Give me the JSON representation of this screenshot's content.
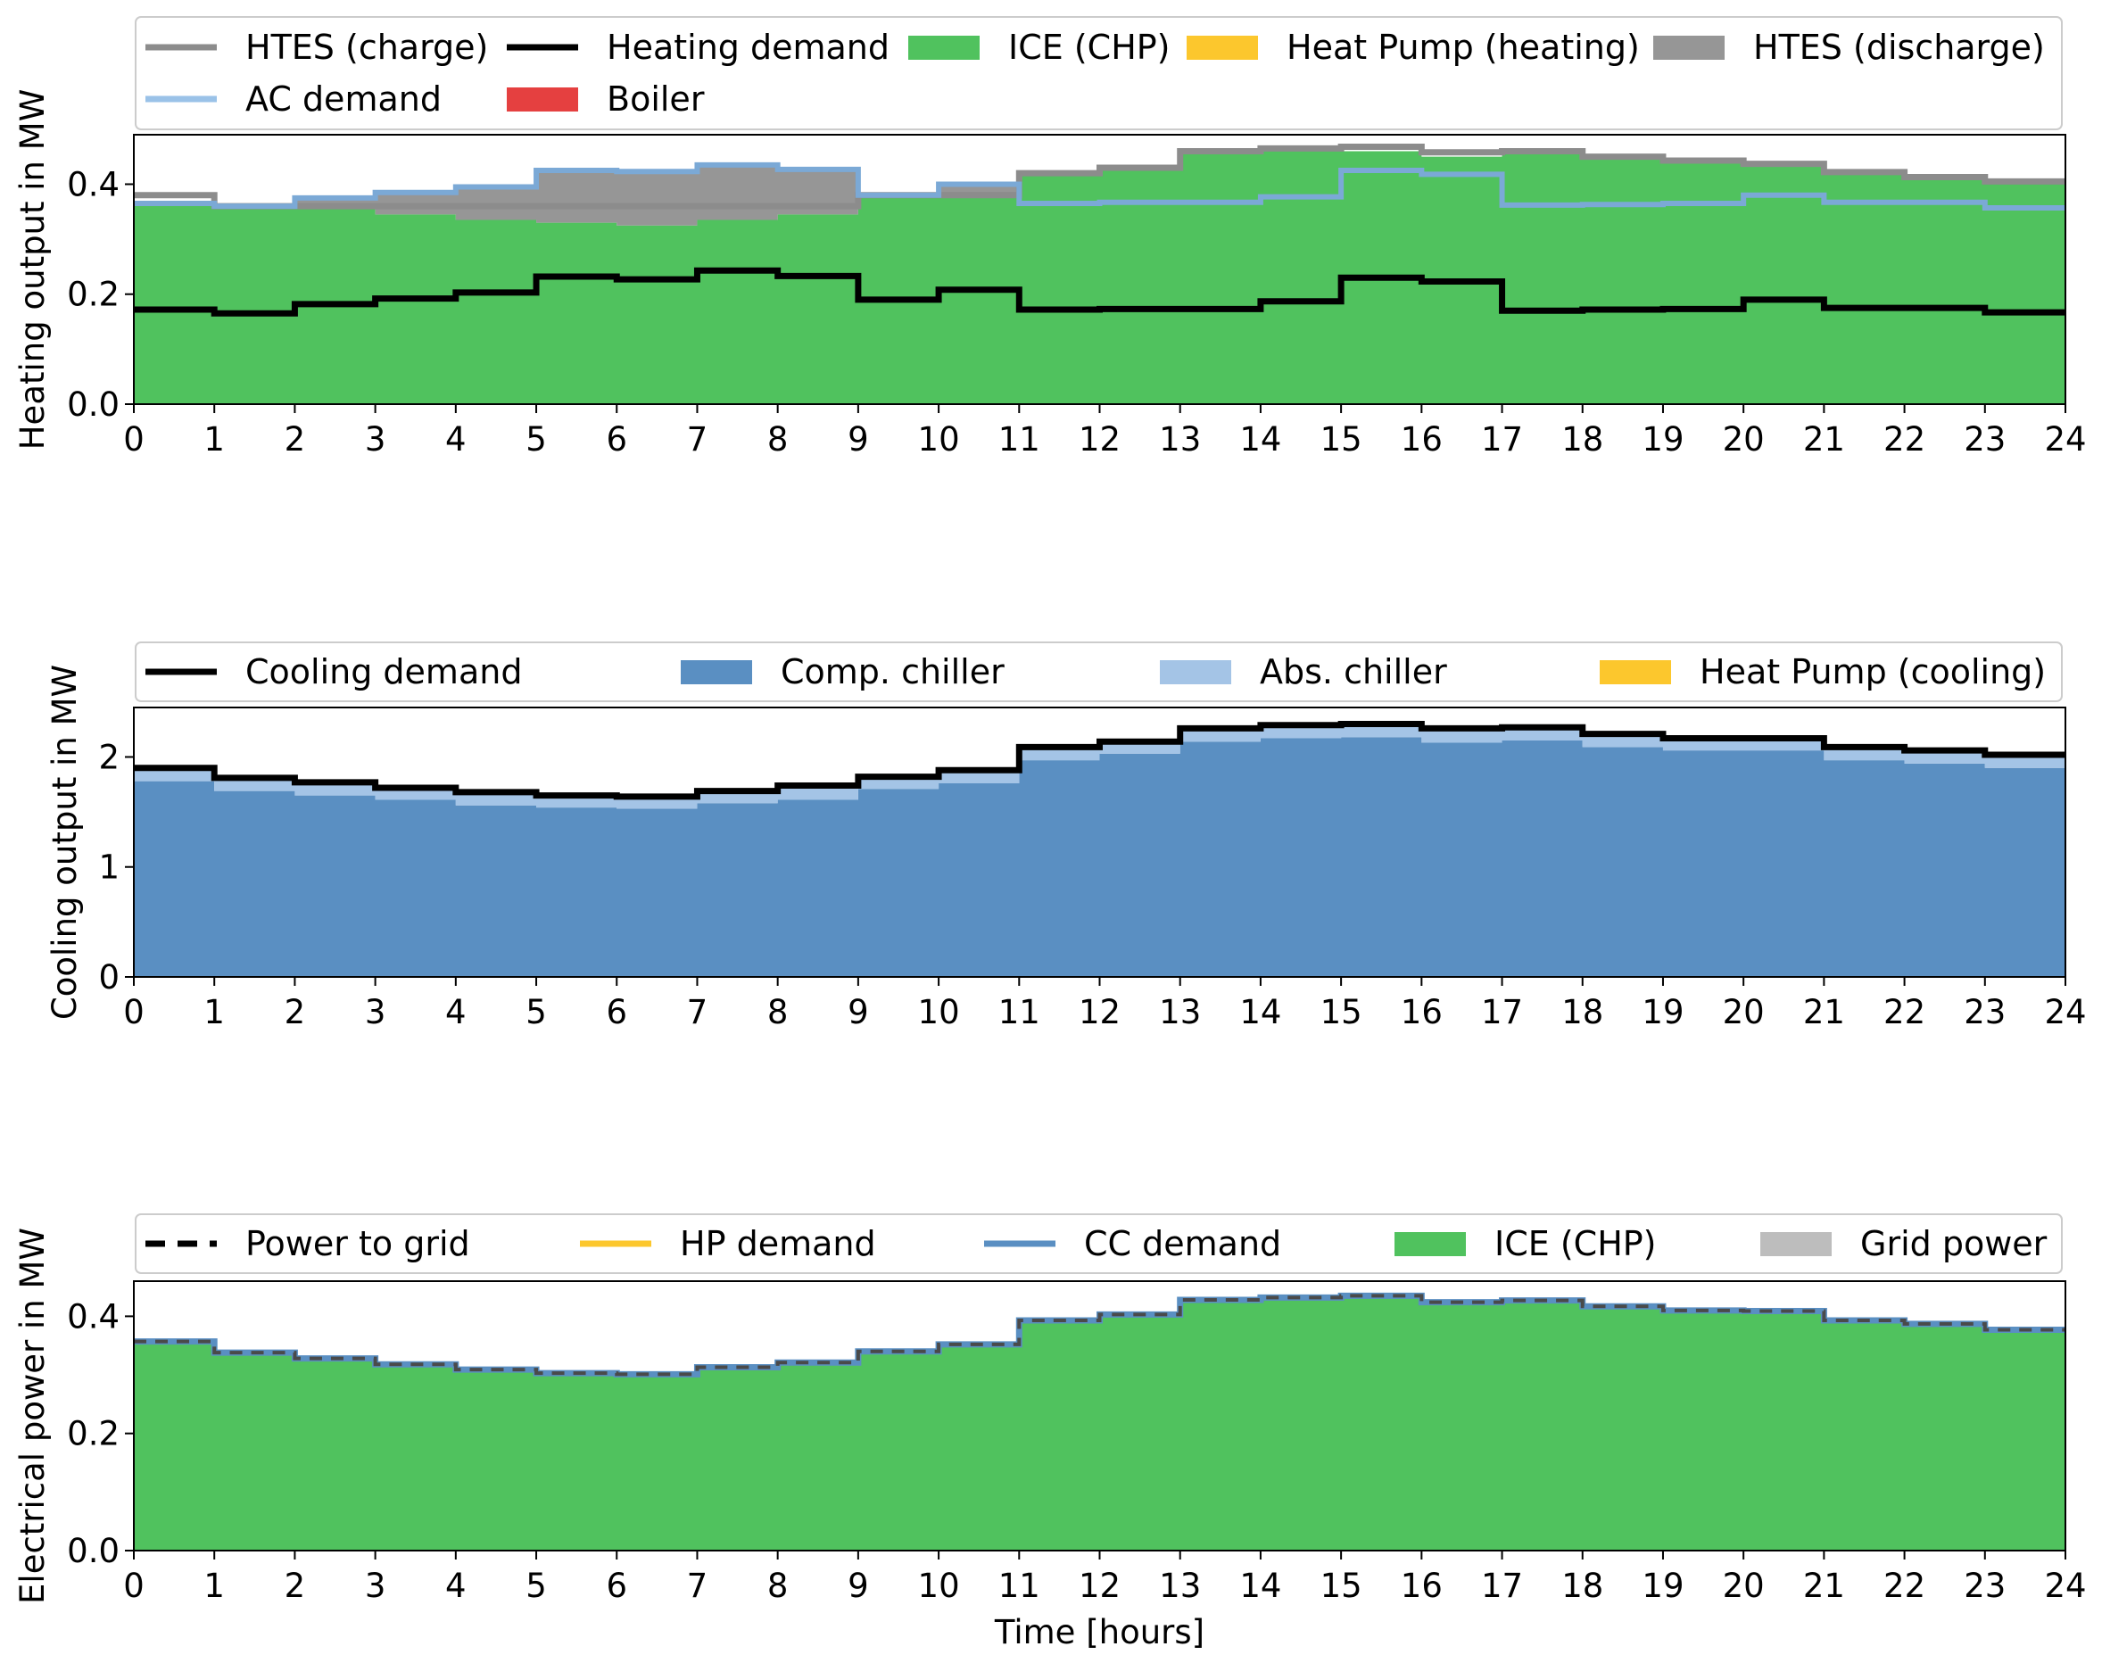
{
  "chart_data": [
    {
      "type": "area",
      "step": "post",
      "x": [
        0,
        1,
        2,
        3,
        4,
        5,
        6,
        7,
        8,
        9,
        10,
        11,
        12,
        13,
        14,
        15,
        16,
        17,
        18,
        19,
        20,
        21,
        22,
        23,
        24
      ],
      "xlim": [
        0,
        24
      ],
      "ylim": [
        0,
        0.49
      ],
      "yticks": [
        0.0,
        0.2,
        0.4
      ],
      "ytick_labels": [
        "0.0",
        "0.2",
        "0.4"
      ],
      "xlabel": "",
      "ylabel": "Heating output in MW",
      "legend_placement": "top",
      "legend": [
        {
          "label": "HTES (charge)",
          "kind": "line",
          "color": "#8c8c8c"
        },
        {
          "label": "Heating demand",
          "kind": "line",
          "color": "#000000"
        },
        {
          "label": "ICE (CHP)",
          "kind": "patch",
          "color": "#50c25e"
        },
        {
          "label": "Heat Pump (heating)",
          "kind": "patch",
          "color": "#fcc72d"
        },
        {
          "label": "HTES (discharge)",
          "kind": "patch",
          "color": "#969696"
        },
        {
          "label": "AC demand",
          "kind": "line",
          "color": "#9ac2e8"
        },
        {
          "label": "Boiler",
          "kind": "patch",
          "color": "#e54040"
        }
      ],
      "stacked_areas": [
        {
          "name": "ICE (CHP)",
          "color": "#50c25e",
          "values": [
            0.365,
            0.355,
            0.355,
            0.345,
            0.335,
            0.33,
            0.325,
            0.335,
            0.345,
            0.375,
            0.375,
            0.42,
            0.43,
            0.455,
            0.46,
            0.46,
            0.45,
            0.455,
            0.445,
            0.44,
            0.435,
            0.42,
            0.41,
            0.4
          ]
        },
        {
          "name": "HTES (discharge)",
          "color": "#969696",
          "values": [
            0.0,
            0.005,
            0.02,
            0.04,
            0.06,
            0.095,
            0.095,
            0.1,
            0.085,
            0.005,
            0.025,
            0.0,
            0.0,
            0.0,
            0.0,
            0.0,
            0.0,
            0.0,
            0.0,
            0.0,
            0.0,
            0.0,
            0.0,
            0.0
          ]
        }
      ],
      "lines": [
        {
          "name": "HTES (charge)",
          "color": "#8c8c8c",
          "width": 7,
          "values": [
            0.38,
            0.36,
            0.36,
            0.36,
            0.36,
            0.36,
            0.36,
            0.36,
            0.36,
            0.38,
            0.38,
            0.42,
            0.43,
            0.46,
            0.465,
            0.468,
            0.458,
            0.46,
            0.45,
            0.443,
            0.437,
            0.422,
            0.413,
            0.405
          ]
        },
        {
          "name": "AC demand",
          "color": "#7ba9d6",
          "width": 6,
          "values": [
            0.365,
            0.36,
            0.375,
            0.385,
            0.395,
            0.425,
            0.423,
            0.435,
            0.427,
            0.38,
            0.4,
            0.365,
            0.367,
            0.367,
            0.377,
            0.425,
            0.418,
            0.362,
            0.363,
            0.365,
            0.38,
            0.367,
            0.367,
            0.357
          ]
        },
        {
          "name": "Heating demand",
          "color": "#000000",
          "width": 7,
          "values": [
            0.172,
            0.165,
            0.182,
            0.192,
            0.203,
            0.232,
            0.227,
            0.243,
            0.233,
            0.19,
            0.208,
            0.172,
            0.173,
            0.173,
            0.187,
            0.23,
            0.223,
            0.17,
            0.172,
            0.173,
            0.19,
            0.175,
            0.175,
            0.167
          ]
        }
      ]
    },
    {
      "type": "area",
      "step": "post",
      "x": [
        0,
        1,
        2,
        3,
        4,
        5,
        6,
        7,
        8,
        9,
        10,
        11,
        12,
        13,
        14,
        15,
        16,
        17,
        18,
        19,
        20,
        21,
        22,
        23,
        24
      ],
      "xlim": [
        0,
        24
      ],
      "ylim": [
        0,
        2.45
      ],
      "yticks": [
        0,
        1,
        2
      ],
      "ytick_labels": [
        "0",
        "1",
        "2"
      ],
      "xlabel": "",
      "ylabel": "Cooling output in MW",
      "legend_placement": "top",
      "legend": [
        {
          "label": "Cooling demand",
          "kind": "line",
          "color": "#000000"
        },
        {
          "label": "Comp. chiller",
          "kind": "patch",
          "color": "#5a8fc2"
        },
        {
          "label": "Abs. chiller",
          "kind": "patch",
          "color": "#a4c4e6"
        },
        {
          "label": "Heat Pump (cooling)",
          "kind": "patch",
          "color": "#fcc72d"
        }
      ],
      "stacked_areas": [
        {
          "name": "Comp. chiller",
          "color": "#5a8fc2",
          "values": [
            1.78,
            1.69,
            1.65,
            1.61,
            1.56,
            1.54,
            1.53,
            1.58,
            1.61,
            1.71,
            1.76,
            1.97,
            2.03,
            2.14,
            2.17,
            2.18,
            2.13,
            2.15,
            2.09,
            2.06,
            2.06,
            1.97,
            1.94,
            1.9
          ]
        },
        {
          "name": "Abs. chiller",
          "color": "#a4c4e6",
          "values": [
            0.11,
            0.11,
            0.11,
            0.1,
            0.1,
            0.1,
            0.1,
            0.1,
            0.11,
            0.1,
            0.11,
            0.12,
            0.1,
            0.12,
            0.12,
            0.11,
            0.12,
            0.11,
            0.11,
            0.1,
            0.1,
            0.11,
            0.11,
            0.11
          ]
        }
      ],
      "lines": [
        {
          "name": "Cooling demand",
          "color": "#000000",
          "width": 7,
          "values": [
            1.9,
            1.81,
            1.77,
            1.72,
            1.68,
            1.65,
            1.64,
            1.69,
            1.74,
            1.82,
            1.88,
            2.09,
            2.14,
            2.26,
            2.29,
            2.3,
            2.26,
            2.27,
            2.21,
            2.17,
            2.17,
            2.09,
            2.06,
            2.02
          ]
        }
      ]
    },
    {
      "type": "area",
      "step": "post",
      "x": [
        0,
        1,
        2,
        3,
        4,
        5,
        6,
        7,
        8,
        9,
        10,
        11,
        12,
        13,
        14,
        15,
        16,
        17,
        18,
        19,
        20,
        21,
        22,
        23,
        24
      ],
      "xlim": [
        0,
        24
      ],
      "ylim": [
        0,
        0.46
      ],
      "yticks": [
        0.0,
        0.2,
        0.4
      ],
      "ytick_labels": [
        "0.0",
        "0.2",
        "0.4"
      ],
      "xlabel": "Time [hours]",
      "ylabel": "Electrical power in MW",
      "legend_placement": "top",
      "legend": [
        {
          "label": "Power to grid",
          "kind": "dashed",
          "color": "#000000"
        },
        {
          "label": "HP demand",
          "kind": "line",
          "color": "#fcc72d"
        },
        {
          "label": "CC demand",
          "kind": "line",
          "color": "#5a8fc2"
        },
        {
          "label": "ICE (CHP)",
          "kind": "patch",
          "color": "#50c25e"
        },
        {
          "label": "Grid power",
          "kind": "patch",
          "color": "#bdbdbd"
        }
      ],
      "stacked_areas": [
        {
          "name": "ICE (CHP)",
          "color": "#50c25e",
          "values": [
            0.357,
            0.338,
            0.328,
            0.318,
            0.309,
            0.303,
            0.301,
            0.313,
            0.321,
            0.34,
            0.352,
            0.393,
            0.403,
            0.428,
            0.432,
            0.435,
            0.424,
            0.427,
            0.417,
            0.41,
            0.409,
            0.393,
            0.387,
            0.377
          ]
        }
      ],
      "lines": [
        {
          "name": "CC demand",
          "color": "#5a8fc2",
          "width": 7,
          "values": [
            0.357,
            0.338,
            0.328,
            0.318,
            0.309,
            0.303,
            0.301,
            0.313,
            0.321,
            0.34,
            0.352,
            0.393,
            0.403,
            0.428,
            0.432,
            0.435,
            0.424,
            0.427,
            0.417,
            0.41,
            0.409,
            0.393,
            0.387,
            0.377
          ]
        },
        {
          "name": "Power to grid",
          "color": "#4a4a4a",
          "width": 4,
          "dash": "14,10",
          "values": [
            0.357,
            0.338,
            0.328,
            0.318,
            0.309,
            0.303,
            0.301,
            0.313,
            0.321,
            0.34,
            0.352,
            0.393,
            0.403,
            0.428,
            0.432,
            0.435,
            0.424,
            0.427,
            0.417,
            0.41,
            0.409,
            0.393,
            0.387,
            0.377
          ]
        }
      ]
    }
  ]
}
